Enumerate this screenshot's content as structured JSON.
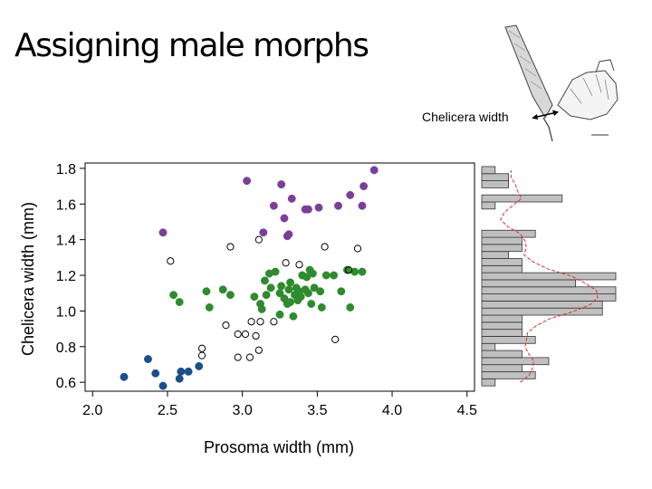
{
  "slide": {
    "title": "Assigning male morphs",
    "illustration_label": "Chelicera width"
  },
  "colors": {
    "morph_large": "#7B3F98",
    "morph_medium": "#2E8B2E",
    "morph_small": "#1A4F8A",
    "unassigned": "#000000",
    "histogram_fill": "#c0c0c0",
    "density_line": "#e03030"
  },
  "icons": {
    "illustration": "spider-chelicera-icon",
    "measurement_arrow": "double-arrow-icon"
  },
  "chart_data": [
    {
      "type": "scatter",
      "title": "",
      "xlabel": "Prosoma width (mm)",
      "ylabel": "Chelicera width (mm)",
      "xlim": [
        1.95,
        4.55
      ],
      "ylim": [
        0.55,
        1.83
      ],
      "xticks": [
        "2.0",
        "2.5",
        "3.0",
        "3.5",
        "4.0",
        "4.5"
      ],
      "yticks": [
        "0.6",
        "0.8",
        "1.0",
        "1.2",
        "1.4",
        "1.6",
        "1.8"
      ],
      "grid": false,
      "series": [
        {
          "color": "#7B3F98",
          "marker": "filled",
          "points": [
            [
              2.47,
              1.44
            ],
            [
              3.03,
              1.73
            ],
            [
              3.26,
              1.71
            ],
            [
              3.14,
              1.44
            ],
            [
              3.21,
              1.59
            ],
            [
              3.28,
              1.52
            ],
            [
              3.33,
              1.63
            ],
            [
              3.3,
              1.42
            ],
            [
              3.31,
              1.43
            ],
            [
              3.42,
              1.57
            ],
            [
              3.44,
              1.57
            ],
            [
              3.51,
              1.58
            ],
            [
              3.64,
              1.59
            ],
            [
              3.72,
              1.65
            ],
            [
              3.8,
              1.59
            ],
            [
              3.81,
              1.7
            ],
            [
              3.88,
              1.79
            ]
          ]
        },
        {
          "color": "#2E8B2E",
          "marker": "filled",
          "points": [
            [
              2.54,
              1.09
            ],
            [
              2.58,
              1.05
            ],
            [
              2.76,
              1.11
            ],
            [
              2.78,
              1.02
            ],
            [
              2.87,
              1.12
            ],
            [
              2.92,
              1.09
            ],
            [
              3.08,
              1.08
            ],
            [
              3.12,
              1.04
            ],
            [
              3.13,
              1.01
            ],
            [
              3.15,
              1.17
            ],
            [
              3.16,
              1.09
            ],
            [
              3.18,
              1.21
            ],
            [
              3.19,
              1.13
            ],
            [
              3.22,
              1.22
            ],
            [
              3.25,
              0.98
            ],
            [
              3.25,
              1.1
            ],
            [
              3.26,
              1.14
            ],
            [
              3.28,
              1.07
            ],
            [
              3.3,
              1.04
            ],
            [
              3.31,
              1.12
            ],
            [
              3.32,
              1.16
            ],
            [
              3.32,
              1.05
            ],
            [
              3.34,
              0.97
            ],
            [
              3.35,
              1.09
            ],
            [
              3.36,
              1.13
            ],
            [
              3.37,
              1.06
            ],
            [
              3.38,
              1.11
            ],
            [
              3.39,
              1.08
            ],
            [
              3.4,
              1.2
            ],
            [
              3.42,
              1.12
            ],
            [
              3.43,
              1.19
            ],
            [
              3.44,
              1.1
            ],
            [
              3.45,
              1.23
            ],
            [
              3.46,
              1.04
            ],
            [
              3.47,
              1.21
            ],
            [
              3.48,
              1.13
            ],
            [
              3.52,
              1.11
            ],
            [
              3.53,
              1.02
            ],
            [
              3.56,
              1.2
            ],
            [
              3.61,
              1.2
            ],
            [
              3.66,
              1.11
            ],
            [
              3.7,
              1.23
            ],
            [
              3.72,
              1.02
            ],
            [
              3.75,
              1.22
            ],
            [
              3.8,
              1.22
            ]
          ]
        },
        {
          "color": "#1A4F8A",
          "marker": "filled",
          "points": [
            [
              2.21,
              0.63
            ],
            [
              2.37,
              0.73
            ],
            [
              2.42,
              0.65
            ],
            [
              2.47,
              0.58
            ],
            [
              2.58,
              0.62
            ],
            [
              2.59,
              0.66
            ],
            [
              2.64,
              0.66
            ],
            [
              2.71,
              0.69
            ]
          ]
        },
        {
          "color": "#000000",
          "marker": "open",
          "points": [
            [
              2.52,
              1.28
            ],
            [
              2.73,
              0.79
            ],
            [
              2.73,
              0.75
            ],
            [
              2.92,
              1.36
            ],
            [
              2.89,
              0.92
            ],
            [
              2.97,
              0.87
            ],
            [
              2.97,
              0.74
            ],
            [
              3.02,
              0.87
            ],
            [
              3.05,
              0.74
            ],
            [
              3.06,
              0.94
            ],
            [
              3.09,
              0.86
            ],
            [
              3.11,
              0.78
            ],
            [
              3.12,
              0.94
            ],
            [
              3.11,
              1.4
            ],
            [
              3.21,
              0.94
            ],
            [
              3.29,
              1.27
            ],
            [
              3.38,
              1.26
            ],
            [
              3.55,
              1.36
            ],
            [
              3.62,
              0.84
            ],
            [
              3.71,
              1.23
            ],
            [
              3.77,
              1.35
            ]
          ]
        }
      ]
    },
    {
      "type": "bar",
      "orientation": "horizontal",
      "title": "",
      "xlabel": "",
      "ylabel": "",
      "ylim": [
        0.55,
        1.83
      ],
      "bins": [
        [
          0.58,
          0.62
        ],
        [
          0.62,
          0.66
        ],
        [
          0.66,
          0.7
        ],
        [
          0.7,
          0.74
        ],
        [
          0.74,
          0.78
        ],
        [
          0.78,
          0.82
        ],
        [
          0.82,
          0.86
        ],
        [
          0.86,
          0.9
        ],
        [
          0.9,
          0.94
        ],
        [
          0.94,
          0.98
        ],
        [
          0.98,
          1.02
        ],
        [
          1.02,
          1.06
        ],
        [
          1.06,
          1.1
        ],
        [
          1.1,
          1.14
        ],
        [
          1.14,
          1.18
        ],
        [
          1.18,
          1.22
        ],
        [
          1.22,
          1.26
        ],
        [
          1.26,
          1.3
        ],
        [
          1.3,
          1.34
        ],
        [
          1.34,
          1.38
        ],
        [
          1.38,
          1.42
        ],
        [
          1.42,
          1.46
        ],
        [
          1.46,
          1.5
        ],
        [
          1.5,
          1.54
        ],
        [
          1.54,
          1.58
        ],
        [
          1.58,
          1.62
        ],
        [
          1.62,
          1.66
        ],
        [
          1.66,
          1.7
        ],
        [
          1.7,
          1.74
        ],
        [
          1.74,
          1.78
        ],
        [
          1.78,
          1.82
        ]
      ],
      "values": [
        1,
        4,
        3,
        5,
        3,
        1,
        4,
        3,
        3,
        3,
        9,
        9,
        10,
        10,
        7,
        10,
        3,
        3,
        2,
        3,
        3,
        4,
        0,
        0,
        0,
        1,
        6,
        0,
        2,
        2,
        1
      ],
      "density_line": true
    }
  ]
}
